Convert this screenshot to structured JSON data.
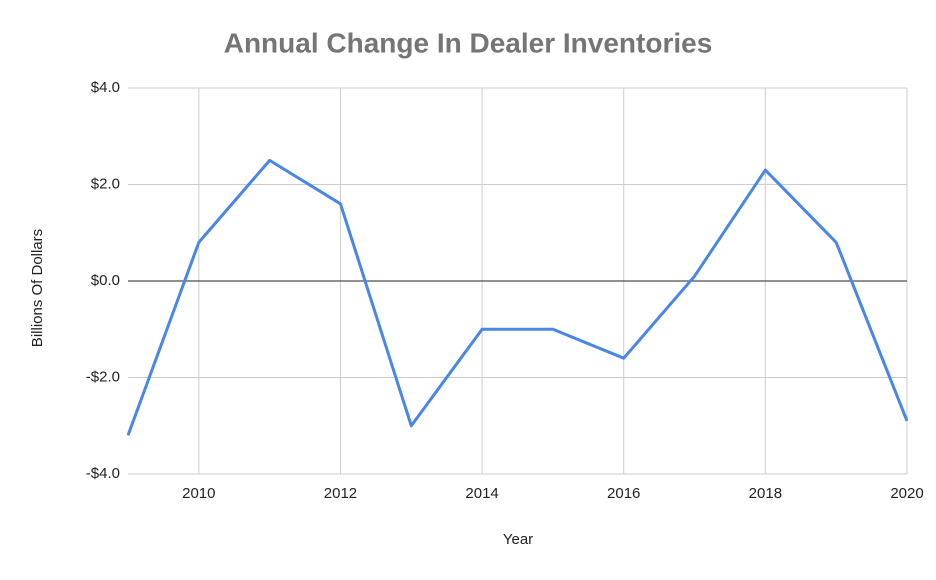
{
  "chart_data": {
    "type": "line",
    "title": "Annual Change In Dealer Inventories",
    "x_label": "Year",
    "y_label": "Billions Of Dollars",
    "x": [
      2009,
      2010,
      2011,
      2012,
      2013,
      2014,
      2015,
      2016,
      2017,
      2018,
      2019,
      2020
    ],
    "series": [
      {
        "name": "Annual Change In Dealer Inventories",
        "color": "#4a86e8",
        "values": [
          -3.2,
          0.8,
          2.5,
          1.6,
          -3.0,
          -1.0,
          -1.0,
          -1.6,
          0.1,
          2.3,
          0.8,
          -2.9
        ]
      }
    ],
    "xlim": [
      2009,
      2020
    ],
    "xticks": [
      2010,
      2012,
      2014,
      2016,
      2018,
      2020
    ],
    "ylim": [
      -4,
      4
    ],
    "yticks": [
      {
        "value": -4,
        "label": "-$4.0"
      },
      {
        "value": -2,
        "label": "-$2.0"
      },
      {
        "value": 0,
        "label": "$0.0"
      },
      {
        "value": 2,
        "label": "$2.0"
      },
      {
        "value": 4,
        "label": "$4.0"
      }
    ],
    "grid": true
  }
}
